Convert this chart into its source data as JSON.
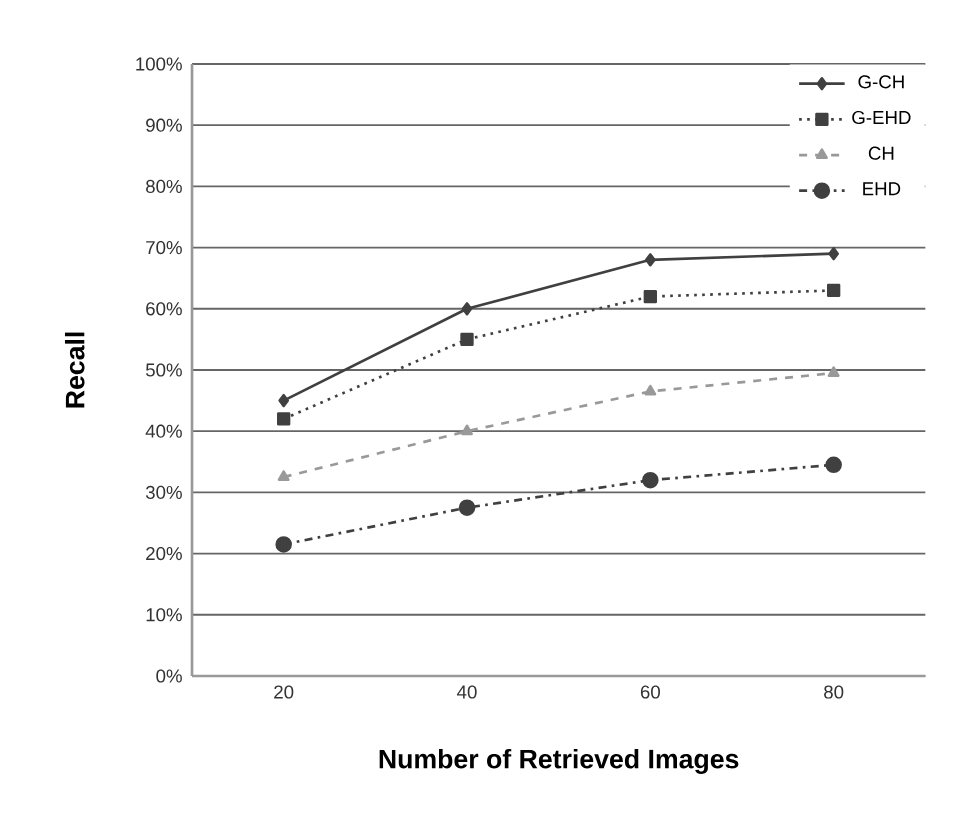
{
  "chart_data": {
    "type": "line",
    "xlabel": "Number of Retrieved Images",
    "ylabel": "Recall",
    "categories": [
      "20",
      "40",
      "60",
      "80"
    ],
    "series": [
      {
        "name": "G-CH",
        "color": "#404040",
        "marker": "diamond",
        "line_style": "solid",
        "values": [
          45,
          60,
          68,
          69
        ]
      },
      {
        "name": "G-EHD",
        "color": "#404040",
        "marker": "square",
        "line_style": "dotted",
        "values": [
          42,
          55,
          62,
          63
        ]
      },
      {
        "name": "CH",
        "color": "#999999",
        "marker": "triangle",
        "line_style": "dashed",
        "values": [
          32.5,
          40,
          46.5,
          49.5
        ]
      },
      {
        "name": "EHD",
        "color": "#404040",
        "marker": "circle",
        "line_style": "dashdot",
        "values": [
          21.5,
          27.5,
          32,
          34.5
        ]
      }
    ],
    "ylim": [
      0,
      100
    ],
    "yticks": [
      {
        "value": 0,
        "label": "0%"
      },
      {
        "value": 10,
        "label": "10%"
      },
      {
        "value": 20,
        "label": "20%"
      },
      {
        "value": 30,
        "label": "30%"
      },
      {
        "value": 40,
        "label": "40%"
      },
      {
        "value": 50,
        "label": "50%"
      },
      {
        "value": 60,
        "label": "60%"
      },
      {
        "value": 70,
        "label": "70%"
      },
      {
        "value": 80,
        "label": "80%"
      },
      {
        "value": 90,
        "label": "90%"
      },
      {
        "value": 100,
        "label": "100%"
      }
    ],
    "grid": "y",
    "legend": "top right"
  }
}
